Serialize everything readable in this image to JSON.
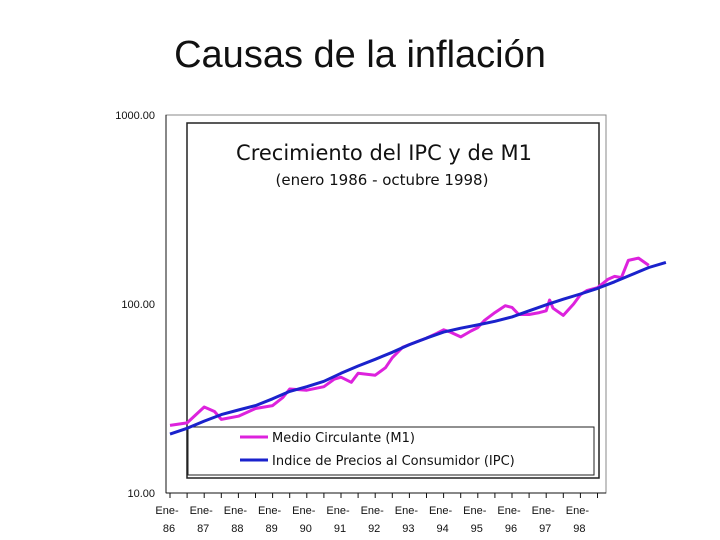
{
  "slide": {
    "title": "Causas de la inflación"
  },
  "chart_data": {
    "type": "line",
    "title": "Crecimiento del IPC y de M1",
    "subtitle": "(enero 1986 - octubre 1998)",
    "y_scale": "log",
    "ylim": [
      10,
      1000
    ],
    "y_ticks": [
      1000,
      100,
      10
    ],
    "y_tick_labels": [
      "1000.00",
      "100.00",
      "10.00"
    ],
    "x_tick_labels": [
      {
        "top": "Ene-",
        "bottom": "86"
      },
      {
        "top": "Ene-",
        "bottom": "87"
      },
      {
        "top": "Ene-",
        "bottom": "88"
      },
      {
        "top": "Ene-",
        "bottom": "89"
      },
      {
        "top": "Ene-",
        "bottom": "90"
      },
      {
        "top": "Ene-",
        "bottom": "91"
      },
      {
        "top": "Ene-",
        "bottom": "92"
      },
      {
        "top": "Ene-",
        "bottom": "93"
      },
      {
        "top": "Ene-",
        "bottom": "94"
      },
      {
        "top": "Ene-",
        "bottom": "95"
      },
      {
        "top": "Ene-",
        "bottom": "96"
      },
      {
        "top": "Ene-",
        "bottom": "97"
      },
      {
        "top": "Ene-",
        "bottom": "98"
      }
    ],
    "legend_position": "bottom-inside",
    "series": [
      {
        "name": "Medio Circulante (M1)",
        "color": "#dd22dd",
        "points": [
          [
            1986.0,
            22.8
          ],
          [
            1986.5,
            23.5
          ],
          [
            1987.0,
            28.5
          ],
          [
            1987.3,
            27.0
          ],
          [
            1987.5,
            24.5
          ],
          [
            1988.0,
            25.5
          ],
          [
            1988.5,
            28.0
          ],
          [
            1989.0,
            29.0
          ],
          [
            1989.3,
            32.0
          ],
          [
            1989.5,
            35.5
          ],
          [
            1990.0,
            35.0
          ],
          [
            1990.5,
            36.5
          ],
          [
            1990.8,
            40.0
          ],
          [
            1991.0,
            41.0
          ],
          [
            1991.3,
            38.5
          ],
          [
            1991.5,
            43.0
          ],
          [
            1992.0,
            42.0
          ],
          [
            1992.3,
            46.0
          ],
          [
            1992.5,
            52.0
          ],
          [
            1992.8,
            59.0
          ],
          [
            1993.0,
            61.0
          ],
          [
            1993.3,
            64.0
          ],
          [
            1993.5,
            66.0
          ],
          [
            1993.8,
            70.0
          ],
          [
            1994.0,
            73.0
          ],
          [
            1994.2,
            71.0
          ],
          [
            1994.5,
            67.0
          ],
          [
            1994.8,
            72.0
          ],
          [
            1995.0,
            75.0
          ],
          [
            1995.2,
            82.0
          ],
          [
            1995.5,
            90.0
          ],
          [
            1995.8,
            98.0
          ],
          [
            1996.0,
            96.0
          ],
          [
            1996.2,
            88.0
          ],
          [
            1996.5,
            88.0
          ],
          [
            1996.8,
            90.0
          ],
          [
            1997.0,
            92.0
          ],
          [
            1997.1,
            105.0
          ],
          [
            1997.2,
            95.0
          ],
          [
            1997.5,
            87.0
          ],
          [
            1997.8,
            100.0
          ],
          [
            1998.0,
            112.0
          ],
          [
            1998.2,
            118.0
          ],
          [
            1998.5,
            122.0
          ],
          [
            1998.8,
            135.0
          ],
          [
            1999.0,
            140.0
          ],
          [
            1999.2,
            138.0
          ],
          [
            1999.4,
            170.0
          ],
          [
            1999.7,
            175.0
          ],
          [
            2000.0,
            160.0
          ]
        ]
      },
      {
        "name": "Indice de Precios al Consumidor (IPC)",
        "color": "#1a22cc",
        "points": [
          [
            1986.0,
            20.5
          ],
          [
            1986.5,
            22.0
          ],
          [
            1987.0,
            24.0
          ],
          [
            1987.5,
            26.0
          ],
          [
            1988.0,
            27.5
          ],
          [
            1988.5,
            29.0
          ],
          [
            1989.0,
            31.5
          ],
          [
            1989.5,
            34.5
          ],
          [
            1990.0,
            36.5
          ],
          [
            1990.5,
            39.0
          ],
          [
            1991.0,
            43.0
          ],
          [
            1991.5,
            47.0
          ],
          [
            1992.0,
            51.0
          ],
          [
            1992.5,
            55.5
          ],
          [
            1993.0,
            61.0
          ],
          [
            1993.5,
            66.0
          ],
          [
            1994.0,
            71.0
          ],
          [
            1994.5,
            74.5
          ],
          [
            1995.0,
            77.5
          ],
          [
            1995.5,
            81.0
          ],
          [
            1996.0,
            85.5
          ],
          [
            1996.5,
            92.0
          ],
          [
            1997.0,
            99.0
          ],
          [
            1997.5,
            106.0
          ],
          [
            1998.0,
            113.0
          ],
          [
            1998.5,
            121.0
          ],
          [
            1999.0,
            131.0
          ],
          [
            1999.5,
            143.0
          ],
          [
            2000.0,
            156.0
          ],
          [
            2000.5,
            166.0
          ]
        ]
      }
    ]
  }
}
